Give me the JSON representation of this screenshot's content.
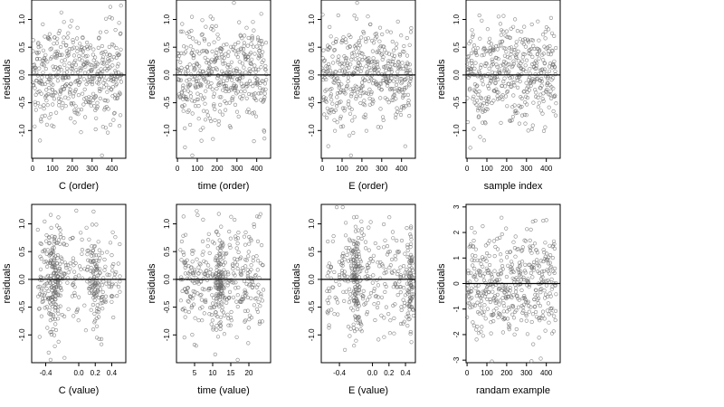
{
  "chart_data": [
    {
      "type": "scatter",
      "xlabel": "C (order)",
      "ylabel": "residuals",
      "xlim": [
        -5,
        470
      ],
      "ylim": [
        -1.5,
        1.35
      ],
      "xticks": [
        0,
        100,
        200,
        300,
        400
      ],
      "xtick_labels": [
        "0",
        "100",
        "200",
        "300",
        "400"
      ],
      "yticks": [
        -1.0,
        -0.5,
        0.0,
        0.5,
        1.0
      ],
      "ytick_labels": [
        "-1.0",
        "-0.5",
        "0.0",
        "0.5",
        "1.0"
      ],
      "reference_line_y": 0,
      "point_count": 450,
      "points_shape": "uniform index, roughly normal residuals, sd ~0.45",
      "grid": false
    },
    {
      "type": "scatter",
      "xlabel": "time (order)",
      "ylabel": "residuals",
      "xlim": [
        -5,
        470
      ],
      "ylim": [
        -1.5,
        1.35
      ],
      "xticks": [
        0,
        100,
        200,
        300,
        400
      ],
      "xtick_labels": [
        "0",
        "100",
        "200",
        "300",
        "400"
      ],
      "yticks": [
        -1.0,
        -0.5,
        0.0,
        0.5,
        1.0
      ],
      "ytick_labels": [
        "-1.0",
        "-0.5",
        "0.0",
        "0.5",
        "1.0"
      ],
      "reference_line_y": 0,
      "point_count": 450,
      "grid": false
    },
    {
      "type": "scatter",
      "xlabel": "E (order)",
      "ylabel": "residuals",
      "xlim": [
        -5,
        470
      ],
      "ylim": [
        -1.5,
        1.35
      ],
      "xticks": [
        0,
        100,
        200,
        300,
        400
      ],
      "xtick_labels": [
        "0",
        "100",
        "200",
        "300",
        "400"
      ],
      "yticks": [
        -1.0,
        -0.5,
        0.0,
        0.5,
        1.0
      ],
      "ytick_labels": [
        "-1.0",
        "-0.5",
        "0.0",
        "0.5",
        "1.0"
      ],
      "reference_line_y": 0,
      "point_count": 450,
      "grid": false
    },
    {
      "type": "scatter",
      "xlabel": "sample index",
      "ylabel": "residuals",
      "xlim": [
        -5,
        470
      ],
      "ylim": [
        -1.5,
        1.35
      ],
      "xticks": [
        0,
        100,
        200,
        300,
        400
      ],
      "xtick_labels": [
        "0",
        "100",
        "200",
        "300",
        "400"
      ],
      "yticks": [
        -1.0,
        -0.5,
        0.0,
        0.5,
        1.0
      ],
      "ytick_labels": [
        "-1.0",
        "-0.5",
        "0.0",
        "0.5",
        "1.0"
      ],
      "reference_line_y": 0,
      "point_count": 450,
      "grid": false
    },
    {
      "type": "scatter",
      "xlabel": "C (value)",
      "ylabel": "residuals",
      "xlim": [
        -0.57,
        0.57
      ],
      "ylim": [
        -1.5,
        1.35
      ],
      "xticks": [
        -0.4,
        0.0,
        0.2,
        0.4
      ],
      "xtick_labels": [
        "-0.4",
        "0.0",
        "0.2",
        "0.4"
      ],
      "yticks": [
        -1.0,
        -0.5,
        0.0,
        0.5,
        1.0
      ],
      "ytick_labels": [
        "-1.0",
        "-0.5",
        "0.0",
        "0.5",
        "1.0"
      ],
      "reference_line_y": 0,
      "point_count": 450,
      "x_distribution": "clustered near -0.3 and 0.2 with scatter across [-0.5, 0.5]",
      "grid": false
    },
    {
      "type": "scatter",
      "xlabel": "time (value)",
      "ylabel": "residuals",
      "xlim": [
        0,
        26
      ],
      "ylim": [
        -1.5,
        1.35
      ],
      "xticks": [
        5,
        10,
        15,
        20
      ],
      "xtick_labels": [
        "5",
        "10",
        "15",
        "20"
      ],
      "yticks": [
        -1.0,
        -0.5,
        0.0,
        0.5,
        1.0
      ],
      "ytick_labels": [
        "-1.0",
        "-0.5",
        "0.0",
        "0.5",
        "1.0"
      ],
      "reference_line_y": 0,
      "point_count": 450,
      "x_distribution": "roughly uniform 1-24 with concentration near 12",
      "grid": false
    },
    {
      "type": "scatter",
      "xlabel": "E (value)",
      "ylabel": "residuals",
      "xlim": [
        -0.62,
        0.52
      ],
      "ylim": [
        -1.5,
        1.35
      ],
      "xticks": [
        -0.4,
        0.0,
        0.2,
        0.4
      ],
      "xtick_labels": [
        "-0.4",
        "0.0",
        "0.2",
        "0.4"
      ],
      "yticks": [
        -1.0,
        -0.5,
        0.0,
        0.5,
        1.0
      ],
      "ytick_labels": [
        "-1.0",
        "-0.5",
        "0.0",
        "0.5",
        "1.0"
      ],
      "reference_line_y": 0,
      "point_count": 450,
      "x_distribution": "concentrated near -0.2 and 0.45",
      "grid": false
    },
    {
      "type": "scatter",
      "xlabel": "randam example",
      "ylabel": "residuals",
      "xlim": [
        -5,
        470
      ],
      "ylim": [
        -3.1,
        3.1
      ],
      "xticks": [
        0,
        100,
        200,
        300,
        400
      ],
      "xtick_labels": [
        "0",
        "100",
        "200",
        "300",
        "400"
      ],
      "yticks": [
        -3,
        -2,
        -1,
        0,
        1,
        2,
        3
      ],
      "ytick_labels": [
        "-3",
        "-2",
        "-1",
        "0",
        "1",
        "2",
        "3"
      ],
      "reference_line_y": 0,
      "point_count": 450,
      "points_shape": "uniform index, standard normal residuals",
      "grid": false
    }
  ],
  "colors": {
    "points": "#6b6b6b",
    "line": "#000000",
    "frame": "#000000",
    "background": "#ffffff"
  }
}
